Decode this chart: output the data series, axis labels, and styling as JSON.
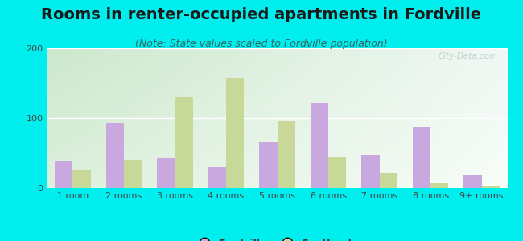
{
  "title": "Rooms in renter-occupied apartments in Fordville",
  "subtitle": "(Note: State values scaled to Fordville population)",
  "categories": [
    "1 room",
    "2 rooms",
    "3 rooms",
    "4 rooms",
    "5 rooms",
    "6 rooms",
    "7 rooms",
    "8 rooms",
    "9+ rooms"
  ],
  "fordville_values": [
    38,
    93,
    42,
    30,
    65,
    122,
    47,
    87,
    18
  ],
  "southgate_values": [
    25,
    40,
    130,
    158,
    95,
    45,
    22,
    7,
    3
  ],
  "fordville_color": "#c9a8e0",
  "southgate_color": "#c8d898",
  "background_color": "#00eeee",
  "plot_bg_color_topleft": "#cce8cc",
  "plot_bg_color_topright": "#e8f4f0",
  "plot_bg_color_bottom": "#e8f4e8",
  "ylim": [
    0,
    200
  ],
  "yticks": [
    0,
    100,
    200
  ],
  "bar_width": 0.35,
  "title_fontsize": 14,
  "subtitle_fontsize": 9,
  "tick_fontsize": 8,
  "legend_fontsize": 9,
  "watermark_text": "City-Data.com"
}
